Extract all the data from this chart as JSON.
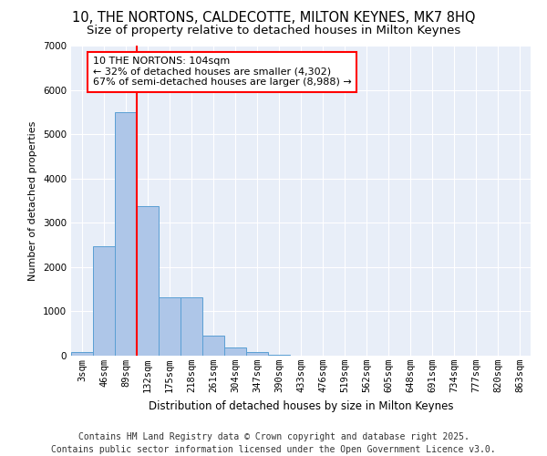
{
  "title1": "10, THE NORTONS, CALDECOTTE, MILTON KEYNES, MK7 8HQ",
  "title2": "Size of property relative to detached houses in Milton Keynes",
  "xlabel": "Distribution of detached houses by size in Milton Keynes",
  "ylabel": "Number of detached properties",
  "categories": [
    "3sqm",
    "46sqm",
    "89sqm",
    "132sqm",
    "175sqm",
    "218sqm",
    "261sqm",
    "304sqm",
    "347sqm",
    "390sqm",
    "433sqm",
    "476sqm",
    "519sqm",
    "562sqm",
    "605sqm",
    "648sqm",
    "691sqm",
    "734sqm",
    "777sqm",
    "820sqm",
    "863sqm"
  ],
  "bar_values": [
    80,
    2480,
    5490,
    3380,
    1310,
    1310,
    450,
    185,
    75,
    30,
    0,
    0,
    0,
    0,
    0,
    0,
    0,
    0,
    0,
    0,
    0
  ],
  "bar_color": "#aec6e8",
  "bar_edge_color": "#5a9fd4",
  "background_color": "#e8eef8",
  "grid_color": "#ffffff",
  "vline_color": "red",
  "vline_pos": 2.5,
  "annotation_title": "10 THE NORTONS: 104sqm",
  "annotation_line1": "← 32% of detached houses are smaller (4,302)",
  "annotation_line2": "67% of semi-detached houses are larger (8,988) →",
  "annotation_box_color": "white",
  "annotation_box_edge": "red",
  "footnote1": "Contains HM Land Registry data © Crown copyright and database right 2025.",
  "footnote2": "Contains public sector information licensed under the Open Government Licence v3.0.",
  "ylim": [
    0,
    7000
  ],
  "yticks": [
    0,
    1000,
    2000,
    3000,
    4000,
    5000,
    6000,
    7000
  ],
  "title_fontsize": 10.5,
  "subtitle_fontsize": 9.5,
  "annotation_fontsize": 8,
  "footnote_fontsize": 7,
  "ylabel_fontsize": 8,
  "xlabel_fontsize": 8.5,
  "tick_fontsize": 7.5
}
